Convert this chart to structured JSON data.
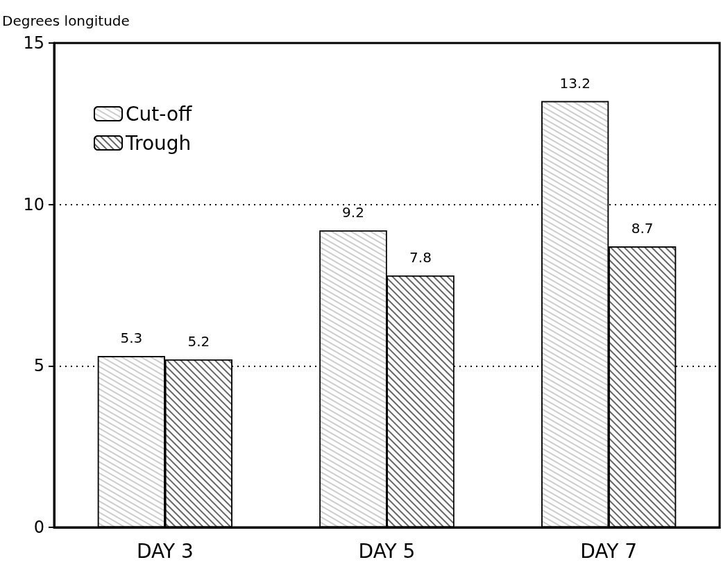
{
  "chart_data": {
    "type": "bar",
    "ylabel": "Degrees longitude",
    "categories": [
      "DAY 3",
      "DAY 5",
      "DAY 7"
    ],
    "series": [
      {
        "name": "Cut-off",
        "color": "#ffffff",
        "values": [
          5.3,
          9.2,
          13.2
        ]
      },
      {
        "name": "Trough",
        "color": "#000000",
        "values": [
          5.2,
          7.8,
          8.7
        ]
      }
    ],
    "ylim": [
      0,
      15
    ],
    "yticks": [
      0,
      5,
      10,
      15
    ],
    "grid": "y",
    "legend": "top left",
    "data_labels": true
  }
}
